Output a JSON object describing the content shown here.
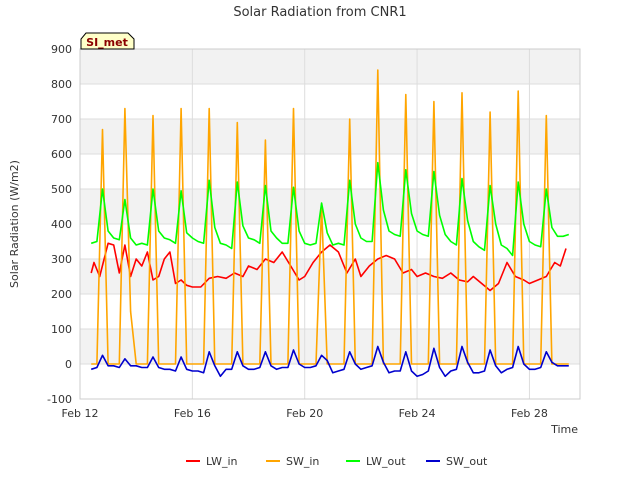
{
  "chart_data": {
    "type": "line",
    "title": "Solar Radiation from CNR1",
    "xlabel": "Time",
    "ylabel": "Solar Radiation (W/m2)",
    "site_tag": "SI_met",
    "ylim": [
      -100,
      900
    ],
    "xlim": [
      12,
      29.8
    ],
    "y_ticks": [
      -100,
      0,
      100,
      200,
      300,
      400,
      500,
      600,
      700,
      800,
      900
    ],
    "x_ticks": [
      {
        "value": 12,
        "label": "Feb 12"
      },
      {
        "value": 16,
        "label": "Feb 16"
      },
      {
        "value": 20,
        "label": "Feb 20"
      },
      {
        "value": 24,
        "label": "Feb 24"
      },
      {
        "value": 28,
        "label": "Feb 28"
      }
    ],
    "x_unit": "day of February",
    "grid": true,
    "legend_position": "bottom",
    "series": [
      {
        "name": "LW_in",
        "color": "#ff0000",
        "x": [
          12.4,
          12.5,
          12.7,
          13.0,
          13.2,
          13.4,
          13.6,
          13.8,
          14.0,
          14.2,
          14.4,
          14.6,
          14.8,
          15.0,
          15.2,
          15.4,
          15.6,
          15.8,
          16.0,
          16.3,
          16.6,
          16.9,
          17.2,
          17.5,
          17.8,
          18.0,
          18.3,
          18.6,
          18.9,
          19.2,
          19.5,
          19.8,
          20.0,
          20.3,
          20.6,
          20.9,
          21.2,
          21.5,
          21.8,
          22.0,
          22.3,
          22.6,
          22.9,
          23.2,
          23.5,
          23.8,
          24.0,
          24.3,
          24.6,
          24.9,
          25.2,
          25.5,
          25.8,
          26.0,
          26.3,
          26.6,
          26.9,
          27.2,
          27.5,
          27.8,
          28.0,
          28.3,
          28.6,
          28.9,
          29.1,
          29.3
        ],
        "y": [
          260,
          290,
          250,
          345,
          340,
          260,
          340,
          250,
          300,
          280,
          320,
          240,
          250,
          300,
          320,
          230,
          240,
          225,
          220,
          220,
          245,
          250,
          245,
          260,
          250,
          280,
          270,
          300,
          290,
          320,
          280,
          240,
          250,
          290,
          320,
          340,
          320,
          260,
          300,
          250,
          280,
          300,
          310,
          300,
          260,
          270,
          250,
          260,
          250,
          245,
          260,
          240,
          235,
          250,
          230,
          210,
          230,
          290,
          250,
          240,
          230,
          240,
          250,
          290,
          280,
          330
        ]
      },
      {
        "name": "SW_in",
        "color": "#ffa500",
        "x": [
          12.4,
          12.6,
          12.8,
          13.0,
          13.2,
          13.4,
          13.6,
          13.8,
          14.0,
          14.2,
          14.4,
          14.6,
          14.8,
          15.0,
          15.2,
          15.4,
          15.6,
          15.8,
          16.0,
          16.2,
          16.4,
          16.6,
          16.8,
          17.0,
          17.2,
          17.4,
          17.6,
          17.8,
          18.0,
          18.2,
          18.4,
          18.6,
          18.8,
          19.0,
          19.2,
          19.4,
          19.6,
          19.8,
          20.0,
          20.2,
          20.4,
          20.6,
          20.8,
          21.0,
          21.2,
          21.4,
          21.6,
          21.8,
          22.0,
          22.2,
          22.4,
          22.6,
          22.8,
          23.0,
          23.2,
          23.4,
          23.6,
          23.8,
          24.0,
          24.2,
          24.4,
          24.6,
          24.8,
          25.0,
          25.2,
          25.4,
          25.6,
          25.8,
          26.0,
          26.2,
          26.4,
          26.6,
          26.8,
          27.0,
          27.2,
          27.4,
          27.6,
          27.8,
          28.0,
          28.2,
          28.4,
          28.6,
          28.8,
          29.0,
          29.2,
          29.4
        ],
        "y": [
          0,
          0,
          670,
          0,
          0,
          0,
          730,
          150,
          0,
          0,
          0,
          710,
          0,
          0,
          0,
          0,
          730,
          0,
          0,
          0,
          0,
          730,
          0,
          0,
          0,
          0,
          690,
          0,
          0,
          0,
          0,
          640,
          0,
          0,
          0,
          0,
          730,
          0,
          0,
          0,
          0,
          450,
          0,
          0,
          0,
          0,
          700,
          0,
          0,
          0,
          0,
          840,
          0,
          0,
          0,
          0,
          770,
          0,
          0,
          0,
          0,
          750,
          0,
          0,
          0,
          0,
          775,
          0,
          0,
          0,
          0,
          720,
          0,
          0,
          0,
          0,
          780,
          0,
          0,
          0,
          0,
          710,
          0,
          0,
          0,
          0
        ]
      },
      {
        "name": "LW_out",
        "color": "#00ff00",
        "x": [
          12.4,
          12.6,
          12.8,
          13.0,
          13.2,
          13.4,
          13.6,
          13.8,
          14.0,
          14.2,
          14.4,
          14.6,
          14.8,
          15.0,
          15.2,
          15.4,
          15.6,
          15.8,
          16.0,
          16.2,
          16.4,
          16.6,
          16.8,
          17.0,
          17.2,
          17.4,
          17.6,
          17.8,
          18.0,
          18.2,
          18.4,
          18.6,
          18.8,
          19.0,
          19.2,
          19.4,
          19.6,
          19.8,
          20.0,
          20.2,
          20.4,
          20.6,
          20.8,
          21.0,
          21.2,
          21.4,
          21.6,
          21.8,
          22.0,
          22.2,
          22.4,
          22.6,
          22.8,
          23.0,
          23.2,
          23.4,
          23.6,
          23.8,
          24.0,
          24.2,
          24.4,
          24.6,
          24.8,
          25.0,
          25.2,
          25.4,
          25.6,
          25.8,
          26.0,
          26.2,
          26.4,
          26.6,
          26.8,
          27.0,
          27.2,
          27.4,
          27.6,
          27.8,
          28.0,
          28.2,
          28.4,
          28.6,
          28.8,
          29.0,
          29.2,
          29.4
        ],
        "y": [
          345,
          350,
          500,
          380,
          360,
          355,
          470,
          360,
          340,
          345,
          340,
          500,
          380,
          360,
          355,
          345,
          495,
          375,
          360,
          350,
          345,
          525,
          390,
          345,
          340,
          330,
          520,
          395,
          360,
          355,
          345,
          510,
          380,
          360,
          345,
          345,
          505,
          380,
          345,
          340,
          345,
          460,
          375,
          340,
          345,
          340,
          525,
          400,
          360,
          350,
          350,
          575,
          440,
          380,
          370,
          365,
          555,
          430,
          380,
          370,
          365,
          550,
          425,
          370,
          350,
          340,
          530,
          410,
          350,
          335,
          325,
          510,
          400,
          340,
          330,
          310,
          520,
          400,
          350,
          340,
          335,
          500,
          390,
          365,
          365,
          370
        ]
      },
      {
        "name": "SW_out",
        "color": "#0000cd",
        "x": [
          12.4,
          12.6,
          12.8,
          13.0,
          13.2,
          13.4,
          13.6,
          13.8,
          14.0,
          14.2,
          14.4,
          14.6,
          14.8,
          15.0,
          15.2,
          15.4,
          15.6,
          15.8,
          16.0,
          16.2,
          16.4,
          16.6,
          16.8,
          17.0,
          17.2,
          17.4,
          17.6,
          17.8,
          18.0,
          18.2,
          18.4,
          18.6,
          18.8,
          19.0,
          19.2,
          19.4,
          19.6,
          19.8,
          20.0,
          20.2,
          20.4,
          20.6,
          20.8,
          21.0,
          21.2,
          21.4,
          21.6,
          21.8,
          22.0,
          22.2,
          22.4,
          22.6,
          22.8,
          23.0,
          23.2,
          23.4,
          23.6,
          23.8,
          24.0,
          24.2,
          24.4,
          24.6,
          24.8,
          25.0,
          25.2,
          25.4,
          25.6,
          25.8,
          26.0,
          26.2,
          26.4,
          26.6,
          26.8,
          27.0,
          27.2,
          27.4,
          27.6,
          27.8,
          28.0,
          28.2,
          28.4,
          28.6,
          28.8,
          29.0,
          29.2,
          29.4
        ],
        "y": [
          -15,
          -10,
          25,
          -5,
          -5,
          -10,
          15,
          -5,
          -5,
          -10,
          -10,
          20,
          -10,
          -15,
          -15,
          -20,
          20,
          -15,
          -20,
          -20,
          -25,
          35,
          -5,
          -35,
          -15,
          -15,
          35,
          -5,
          -15,
          -15,
          -10,
          35,
          -5,
          -15,
          -10,
          -10,
          40,
          0,
          -10,
          -10,
          -5,
          25,
          10,
          -25,
          -20,
          -15,
          35,
          0,
          -15,
          -10,
          -5,
          50,
          5,
          -25,
          -20,
          -20,
          35,
          -20,
          -35,
          -30,
          -20,
          45,
          -10,
          -35,
          -20,
          -15,
          50,
          5,
          -25,
          -25,
          -20,
          40,
          -5,
          -25,
          -15,
          -10,
          50,
          0,
          -15,
          -15,
          -10,
          35,
          5,
          -5,
          -5,
          -5
        ]
      }
    ]
  }
}
